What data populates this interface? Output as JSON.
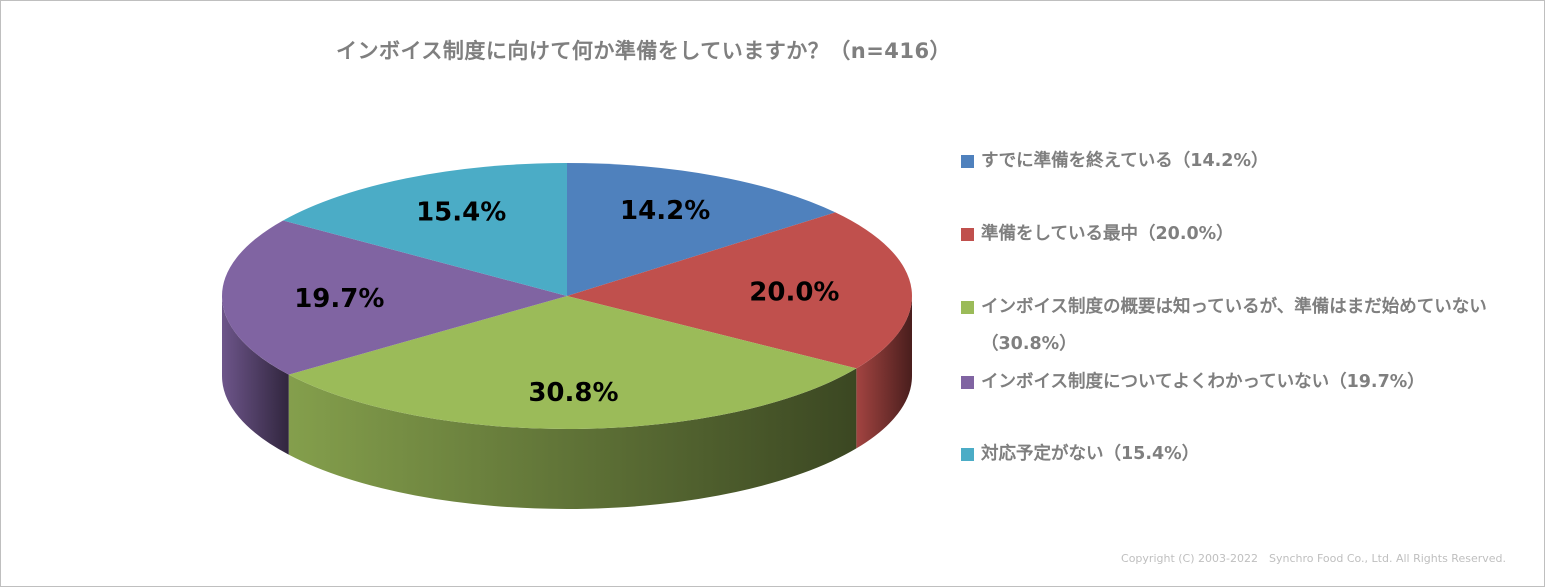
{
  "chart_data": {
    "type": "pie",
    "title": "インボイス制度に向けて何か準備をしていますか？（n=416）",
    "slices": [
      {
        "label": "すでに準備を終えている（14.2%）",
        "data_label": "14.2%",
        "value": 14.2,
        "color": "#4F81BD"
      },
      {
        "label": "準備をしている最中（20.0%）",
        "data_label": "20.0%",
        "value": 20.0,
        "color": "#C0504D"
      },
      {
        "label": "インボイス制度の概要は知っているが、準備はまだ始めていない（30.8%）",
        "data_label": "30.8%",
        "value": 30.8,
        "color": "#9BBB59"
      },
      {
        "label": "インボイス制度についてよくわかっていない（19.7%）",
        "data_label": "19.7%",
        "value": 19.7,
        "color": "#8064A2"
      },
      {
        "label": "対応予定がない（15.4%）",
        "data_label": "15.4%",
        "value": 15.4,
        "color": "#4BACC6"
      }
    ],
    "legend_position": "right",
    "style": "3d-pie"
  },
  "copyright": "Copyright (C) 2003-2022　Synchro Food Co., Ltd. All Rights Reserved."
}
